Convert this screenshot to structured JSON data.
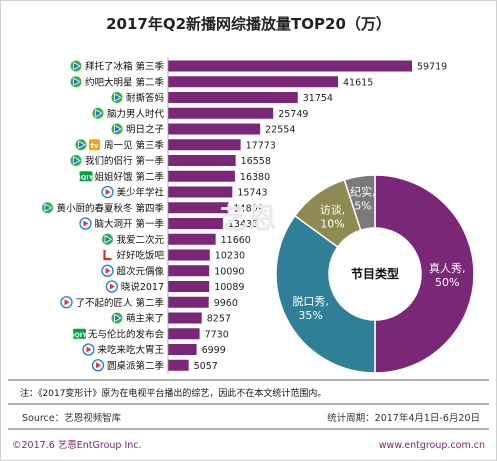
{
  "title": "2017年Q2新播网综播放量TOP20（万）",
  "chart_data": [
    {
      "type": "bar",
      "orientation": "horizontal",
      "categories": [
        "拜托了冰箱 第三季",
        "约吧大明星 第二季",
        "耐撕答妈",
        "脑力男人时代",
        "明日之子",
        "周一见 第三季",
        "我们的侣行 第一季",
        "姐姐好饿 第二季",
        "美少年学社",
        "黄小厨的春夏秋冬 第四季",
        "脑大洞开 第一季",
        "我爱二次元",
        "好好吃饭吧",
        "超次元偶像",
        "晓说2017",
        "了不起的匠人 第二季",
        "萌主来了",
        "无与伦比的发布会",
        "来吃来吃大胃王",
        "圆桌派第二季"
      ],
      "values": [
        59719,
        41615,
        31754,
        25749,
        22554,
        17773,
        16558,
        16380,
        15743,
        14809,
        13435,
        11660,
        10230,
        10090,
        10089,
        9960,
        8257,
        7730,
        6999,
        5057
      ],
      "platform_icons": [
        "tencent",
        "tencent",
        "tencent",
        "tencent",
        "tencent",
        "tencent-youku",
        "tencent",
        "iqiyi",
        "youku",
        "tencent",
        "youku",
        "tencent",
        "le",
        "youku",
        "youku",
        "youku",
        "tencent",
        "iqiyi",
        "youku",
        "youku"
      ],
      "bar_color": "#7b2777"
    },
    {
      "type": "pie",
      "title": "节目类型",
      "slices": [
        {
          "label": "真人秀",
          "value": 50,
          "color": "#7b2777"
        },
        {
          "label": "脱口秀",
          "value": 35,
          "color": "#2f8096"
        },
        {
          "label": "访谈",
          "value": 10,
          "color": "#8f8a52"
        },
        {
          "label": "纪实",
          "value": 5,
          "color": "#7a7a7a"
        }
      ]
    }
  ],
  "note": "注：《2017变形计》原为在电视平台播出的综艺，因此不在本文统计范围内。",
  "source": "Source：艺恩视频智库",
  "period": "统计周期：2017年4月1日-6月20日",
  "copyright": "©2017.6 艺恩EntGroup Inc.",
  "website": "www.entgroup.com.cn",
  "watermark": "艺恩",
  "colors": {
    "brand": "#7b2777",
    "tencent_blue": "#1e6fd9",
    "tencent_green": "#35b34a",
    "iqiyi": "#00a33b",
    "youku": "#1b7fd6",
    "le": "#e02828"
  }
}
